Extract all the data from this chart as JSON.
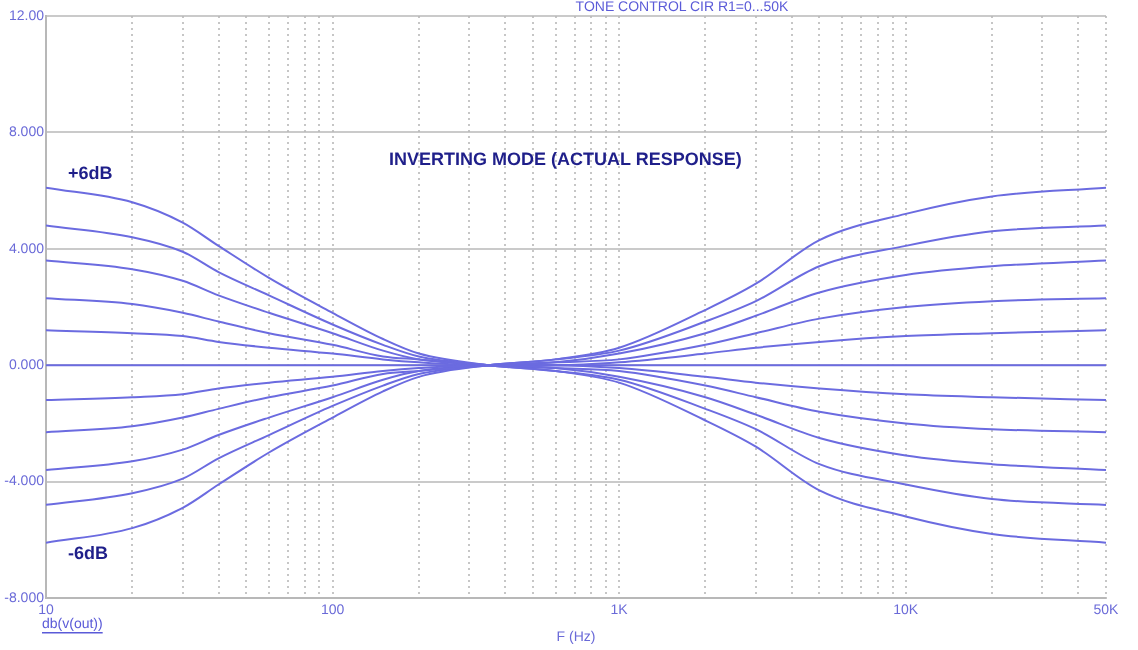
{
  "chart_data": {
    "type": "line",
    "title": "TONE CONTROL CIR R1=0...50K",
    "xlabel": "F (Hz)",
    "x": [
      10,
      20,
      30,
      40,
      60,
      100,
      150,
      200,
      350,
      600,
      1000,
      2000,
      3000,
      5000,
      10000,
      20000,
      50000
    ],
    "series": [
      {
        "color": "#6b6be0",
        "values": [
          6.1,
          5.6,
          4.9,
          4.1,
          3.0,
          1.8,
          0.9,
          0.4,
          0,
          -0.2,
          -0.6,
          -1.9,
          -2.8,
          -4.3,
          -5.2,
          -5.8,
          -6.1
        ]
      },
      {
        "color": "#6b6be0",
        "values": [
          4.8,
          4.4,
          3.9,
          3.2,
          2.4,
          1.4,
          0.7,
          0.3,
          0,
          -0.2,
          -0.5,
          -1.5,
          -2.2,
          -3.4,
          -4.1,
          -4.6,
          -4.8
        ]
      },
      {
        "color": "#6b6be0",
        "values": [
          3.6,
          3.3,
          2.9,
          2.4,
          1.8,
          1.1,
          0.5,
          0.2,
          0,
          -0.1,
          -0.4,
          -1.1,
          -1.7,
          -2.5,
          -3.1,
          -3.4,
          -3.6
        ]
      },
      {
        "color": "#6b6be0",
        "values": [
          2.3,
          2.1,
          1.8,
          1.5,
          1.1,
          0.7,
          0.3,
          0.2,
          0,
          -0.1,
          -0.2,
          -0.7,
          -1.1,
          -1.6,
          -2.0,
          -2.2,
          -2.3
        ]
      },
      {
        "color": "#6b6be0",
        "values": [
          1.2,
          1.1,
          1.0,
          0.8,
          0.6,
          0.4,
          0.2,
          0.1,
          0,
          0,
          -0.1,
          -0.4,
          -0.6,
          -0.8,
          -1.0,
          -1.1,
          -1.2
        ]
      },
      {
        "color": "#6b6be0",
        "values": [
          0,
          0,
          0,
          0,
          0,
          0,
          0,
          0,
          0,
          0,
          0,
          0,
          0,
          0,
          0,
          0,
          0
        ]
      },
      {
        "color": "#6b6be0",
        "values": [
          -1.2,
          -1.1,
          -1.0,
          -0.8,
          -0.6,
          -0.4,
          -0.2,
          -0.1,
          0,
          0,
          0.1,
          0.4,
          0.6,
          0.8,
          1.0,
          1.1,
          1.2
        ]
      },
      {
        "color": "#6b6be0",
        "values": [
          -2.3,
          -2.1,
          -1.8,
          -1.5,
          -1.1,
          -0.7,
          -0.3,
          -0.2,
          0,
          0.1,
          0.2,
          0.7,
          1.1,
          1.6,
          2.0,
          2.2,
          2.3
        ]
      },
      {
        "color": "#6b6be0",
        "values": [
          -3.6,
          -3.3,
          -2.9,
          -2.4,
          -1.8,
          -1.1,
          -0.5,
          -0.2,
          0,
          0.1,
          0.4,
          1.1,
          1.7,
          2.5,
          3.1,
          3.4,
          3.6
        ]
      },
      {
        "color": "#6b6be0",
        "values": [
          -4.8,
          -4.4,
          -3.9,
          -3.2,
          -2.4,
          -1.4,
          -0.7,
          -0.3,
          0,
          0.2,
          0.5,
          1.5,
          2.2,
          3.4,
          4.1,
          4.6,
          4.8
        ]
      },
      {
        "color": "#6b6be0",
        "values": [
          -6.1,
          -5.6,
          -4.9,
          -4.1,
          -3.0,
          -1.8,
          -0.9,
          -0.4,
          0,
          0.2,
          0.6,
          1.9,
          2.8,
          4.3,
          5.2,
          5.8,
          6.1
        ]
      }
    ],
    "log": "x",
    "xlim": [
      10,
      50000
    ],
    "ylim": [
      -8,
      12
    ],
    "xticks": [
      {
        "value": 10,
        "label": "10"
      },
      {
        "value": 20,
        "label": null
      },
      {
        "value": 30,
        "label": null
      },
      {
        "value": 40,
        "label": null
      },
      {
        "value": 50,
        "label": null
      },
      {
        "value": 60,
        "label": null
      },
      {
        "value": 70,
        "label": null
      },
      {
        "value": 80,
        "label": null
      },
      {
        "value": 90,
        "label": null
      },
      {
        "value": 100,
        "label": "100"
      },
      {
        "value": 200,
        "label": null
      },
      {
        "value": 300,
        "label": null
      },
      {
        "value": 400,
        "label": null
      },
      {
        "value": 500,
        "label": null
      },
      {
        "value": 600,
        "label": null
      },
      {
        "value": 700,
        "label": null
      },
      {
        "value": 800,
        "label": null
      },
      {
        "value": 900,
        "label": null
      },
      {
        "value": 1000,
        "label": "1K"
      },
      {
        "value": 2000,
        "label": null
      },
      {
        "value": 3000,
        "label": null
      },
      {
        "value": 4000,
        "label": null
      },
      {
        "value": 5000,
        "label": null
      },
      {
        "value": 6000,
        "label": null
      },
      {
        "value": 7000,
        "label": null
      },
      {
        "value": 8000,
        "label": null
      },
      {
        "value": 9000,
        "label": null
      },
      {
        "value": 10000,
        "label": "10K"
      },
      {
        "value": 20000,
        "label": null
      },
      {
        "value": 30000,
        "label": null
      },
      {
        "value": 40000,
        "label": null
      },
      {
        "value": 50000,
        "label": "50K"
      }
    ],
    "yticks": [
      {
        "value": -8,
        "label": "-8.000"
      },
      {
        "value": -4,
        "label": "-4.000"
      },
      {
        "value": 0,
        "label": "0.000"
      },
      {
        "value": 4,
        "label": "4.000"
      },
      {
        "value": 8,
        "label": "8.000"
      },
      {
        "value": 12,
        "label": "12.00"
      }
    ],
    "grid": true,
    "marker": "none",
    "line_style": "solid",
    "annotations": [
      "INVERTING MODE (ACTUAL RESPONSE)",
      "+6dB",
      "-6dB",
      "db(v(out))"
    ]
  }
}
